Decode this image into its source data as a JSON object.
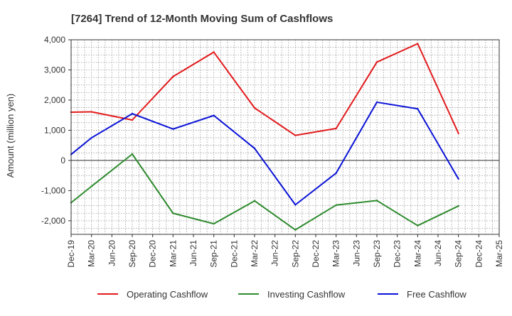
{
  "chart_data": {
    "type": "line",
    "title": "[7264]  Trend of 12-Month Moving Sum of Cashflows",
    "xlabel": "",
    "ylabel": "Amount (million yen)",
    "categories": [
      "Dec-19",
      "Mar-20",
      "Jun-20",
      "Sep-20",
      "Dec-20",
      "Mar-21",
      "Jun-21",
      "Sep-21",
      "Dec-21",
      "Mar-22",
      "Jun-22",
      "Sep-22",
      "Dec-22",
      "Mar-23",
      "Jun-23",
      "Sep-23",
      "Dec-23",
      "Mar-24",
      "Jun-24",
      "Sep-24",
      "Dec-24",
      "Mar-25"
    ],
    "yticks": [
      -2000,
      -1000,
      0,
      1000,
      2000,
      3000,
      4000
    ],
    "ytick_labels": [
      "-2,000",
      "-1,000",
      "0",
      "1,000",
      "2,000",
      "3,000",
      "4,000"
    ],
    "ylim": [
      -2450,
      4000
    ],
    "grid": true,
    "legend_position": "bottom",
    "series": [
      {
        "name": "Operating Cashflow",
        "color": "#e31a1c",
        "points": [
          {
            "x": "Dec-19",
            "y": 1600
          },
          {
            "x": "Mar-20",
            "y": 1610
          },
          {
            "x": "Sep-20",
            "y": 1340
          },
          {
            "x": "Mar-21",
            "y": 2780
          },
          {
            "x": "Sep-21",
            "y": 3590
          },
          {
            "x": "Mar-22",
            "y": 1740
          },
          {
            "x": "Sep-22",
            "y": 830
          },
          {
            "x": "Mar-23",
            "y": 1060
          },
          {
            "x": "Sep-23",
            "y": 3260
          },
          {
            "x": "Mar-24",
            "y": 3870
          },
          {
            "x": "Sep-24",
            "y": 900
          }
        ]
      },
      {
        "name": "Investing Cashflow",
        "color": "#2e8b2e",
        "points": [
          {
            "x": "Dec-19",
            "y": -1400
          },
          {
            "x": "Mar-20",
            "y": -860
          },
          {
            "x": "Sep-20",
            "y": 210
          },
          {
            "x": "Mar-21",
            "y": -1750
          },
          {
            "x": "Sep-21",
            "y": -2100
          },
          {
            "x": "Mar-22",
            "y": -1340
          },
          {
            "x": "Sep-22",
            "y": -2300
          },
          {
            "x": "Mar-23",
            "y": -1480
          },
          {
            "x": "Sep-23",
            "y": -1330
          },
          {
            "x": "Mar-24",
            "y": -2160
          },
          {
            "x": "Sep-24",
            "y": -1510
          }
        ]
      },
      {
        "name": "Free Cashflow",
        "color": "#0a12d6",
        "points": [
          {
            "x": "Dec-19",
            "y": 200
          },
          {
            "x": "Mar-20",
            "y": 750
          },
          {
            "x": "Sep-20",
            "y": 1550
          },
          {
            "x": "Mar-21",
            "y": 1040
          },
          {
            "x": "Sep-21",
            "y": 1490
          },
          {
            "x": "Mar-22",
            "y": 400
          },
          {
            "x": "Sep-22",
            "y": -1470
          },
          {
            "x": "Mar-23",
            "y": -420
          },
          {
            "x": "Sep-23",
            "y": 1930
          },
          {
            "x": "Mar-24",
            "y": 1710
          },
          {
            "x": "Sep-24",
            "y": -610
          }
        ]
      }
    ]
  }
}
